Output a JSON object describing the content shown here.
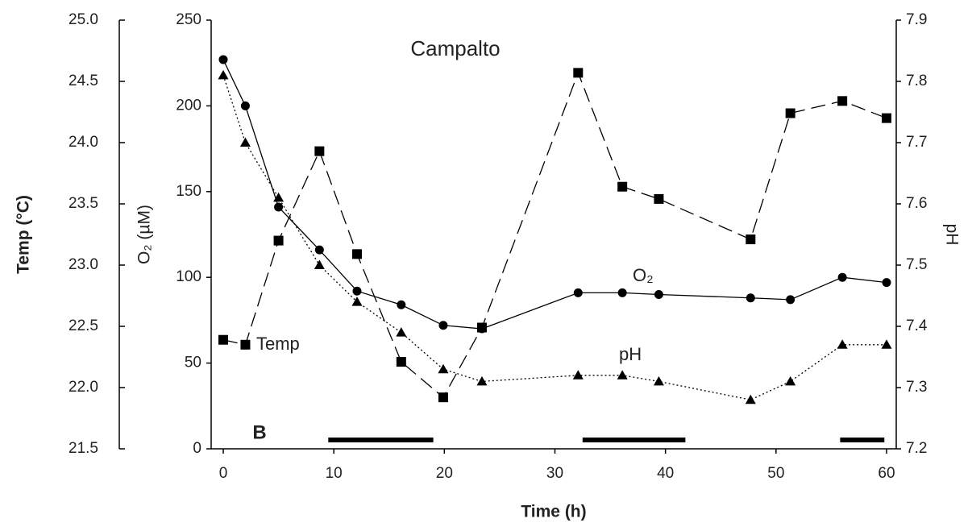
{
  "chart_data": {
    "type": "line",
    "title": "Campalto",
    "panel_label": "B",
    "x_label": "Time (h)",
    "y_label": "O₂ (µM)",
    "y2_label": "pH",
    "y3_label": "Temp (°C)",
    "xlim": [
      0,
      60
    ],
    "xticks": [
      0,
      10,
      20,
      30,
      40,
      50,
      60
    ],
    "ylim": [
      0,
      250
    ],
    "yticks": [
      0,
      50,
      100,
      150,
      200,
      250
    ],
    "y2lim": [
      7.2,
      7.9
    ],
    "y2ticks": [
      7.2,
      7.3,
      7.4,
      7.5,
      7.6,
      7.7,
      7.8,
      7.9
    ],
    "y3lim": [
      21.5,
      25.0
    ],
    "y3ticks": [
      21.5,
      {
        "value": 22.0,
        "label": "22.0"
      },
      22.5,
      {
        "value": 23.0,
        "label": "23.0"
      },
      23.5,
      {
        "value": 24.0,
        "label": "24.0"
      },
      24.5,
      {
        "value": 25.0,
        "label": "25.0"
      }
    ],
    "x": [
      0,
      2,
      5,
      8.7,
      12.1,
      16.1,
      19.9,
      23.4,
      32.1,
      36.1,
      39.4,
      47.7,
      51.3,
      56,
      60
    ],
    "series": [
      {
        "name": "Temp",
        "axis": "y3",
        "marker": "square",
        "dash": "dashed",
        "color": "#000000",
        "values": [
          22.39,
          22.35,
          23.2,
          23.93,
          23.09,
          22.21,
          21.92,
          22.49,
          24.57,
          23.64,
          23.54,
          23.21,
          24.24,
          24.34,
          24.2
        ]
      },
      {
        "name": "O₂",
        "axis": "y",
        "marker": "circle",
        "dash": "solid",
        "color": "#000000",
        "values": [
          227,
          200,
          141,
          116,
          92,
          84,
          72,
          70,
          91,
          91,
          90,
          88,
          87,
          100,
          97
        ]
      },
      {
        "name": "pH",
        "axis": "y2",
        "marker": "triangle",
        "dash": "dotted",
        "color": "#000000",
        "values": [
          7.81,
          7.7,
          7.61,
          7.5,
          7.44,
          7.39,
          7.33,
          7.31,
          7.32,
          7.32,
          7.31,
          7.28,
          7.31,
          7.37,
          7.37
        ]
      }
    ],
    "dark_periods": [
      [
        9.5,
        19
      ],
      [
        32.5,
        41.8
      ],
      [
        55.8,
        59.8
      ]
    ]
  }
}
